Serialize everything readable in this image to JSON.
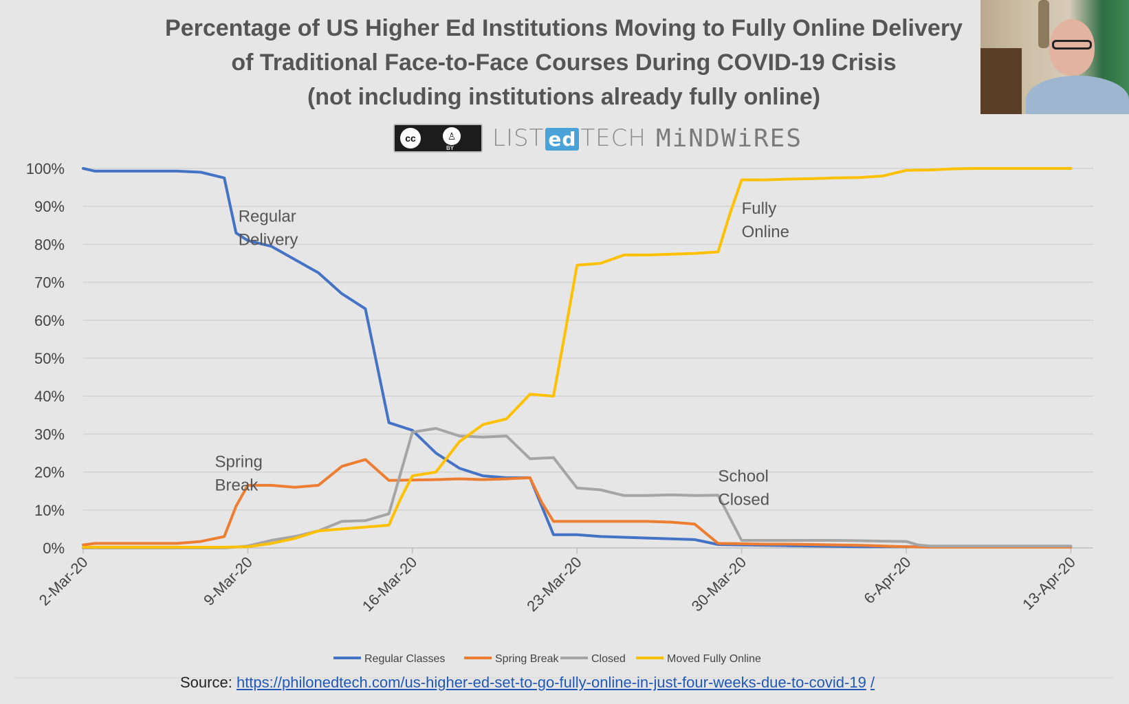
{
  "title_lines": [
    "Percentage of US Higher Ed Institutions Moving to Fully Online Delivery",
    "of Traditional Face-to-Face Courses During COVID-19 Crisis",
    "(not including institutions already fully online)"
  ],
  "logos": {
    "cc_label": "cc",
    "by_label": "BY",
    "listedtech_left": "LIST",
    "listedtech_mid": "ed",
    "listedtech_right": "TECH",
    "mindwires": "MiNDWiRES"
  },
  "source": {
    "label": "Source:",
    "url": "https://philonedtech.com/us-higher-ed-set-to-go-fully-online-in-just-four-weeks-due-to-covid-19",
    "trailing": "/"
  },
  "chart_data": {
    "type": "line",
    "title": "Percentage of US Higher Ed Institutions Moving to Fully Online Delivery of Traditional Face-to-Face Courses During COVID-19 Crisis (not including institutions already fully online)",
    "x_start": "2020-03-02",
    "x_ticks": [
      "2-Mar-20",
      "9-Mar-20",
      "16-Mar-20",
      "23-Mar-20",
      "30-Mar-20",
      "6-Apr-20",
      "13-Apr-20"
    ],
    "y_ticks": [
      "0%",
      "10%",
      "20%",
      "30%",
      "40%",
      "50%",
      "60%",
      "70%",
      "80%",
      "90%",
      "100%"
    ],
    "ylim": [
      0,
      100
    ],
    "grid": true,
    "legend_position": "bottom",
    "series": [
      {
        "name": "Regular Classes",
        "color": "#4472c4",
        "points": [
          [
            0,
            100
          ],
          [
            0.5,
            99.3
          ],
          [
            1,
            99.3
          ],
          [
            2,
            99.3
          ],
          [
            3,
            99.3
          ],
          [
            4,
            99.3
          ],
          [
            5,
            99
          ],
          [
            6,
            97.5
          ],
          [
            6.5,
            83
          ],
          [
            7,
            81
          ],
          [
            8,
            79.5
          ],
          [
            9,
            76
          ],
          [
            10,
            72.5
          ],
          [
            11,
            67
          ],
          [
            12,
            63
          ],
          [
            12.5,
            48
          ],
          [
            13,
            33
          ],
          [
            14,
            31
          ],
          [
            15,
            25
          ],
          [
            16,
            21
          ],
          [
            17,
            19
          ],
          [
            18,
            18.5
          ],
          [
            19,
            18.5
          ],
          [
            19.5,
            11
          ],
          [
            20,
            3.5
          ],
          [
            21,
            3.5
          ],
          [
            22,
            3
          ],
          [
            23,
            2.8
          ],
          [
            24,
            2.6
          ],
          [
            25,
            2.4
          ],
          [
            26,
            2.2
          ],
          [
            27,
            0.9
          ],
          [
            28,
            0.8
          ],
          [
            29,
            0.7
          ],
          [
            30,
            0.6
          ],
          [
            31,
            0.5
          ],
          [
            32,
            0.4
          ],
          [
            33,
            0.3
          ],
          [
            34,
            0.3
          ],
          [
            35,
            0.3
          ],
          [
            36,
            0.3
          ],
          [
            37,
            0.3
          ],
          [
            38,
            0.3
          ],
          [
            39,
            0.3
          ],
          [
            40,
            0.3
          ],
          [
            41,
            0.3
          ],
          [
            42,
            0.3
          ]
        ]
      },
      {
        "name": "Spring Break",
        "color": "#ed7d31",
        "points": [
          [
            0,
            0.8
          ],
          [
            0.5,
            1.2
          ],
          [
            1,
            1.2
          ],
          [
            2,
            1.2
          ],
          [
            3,
            1.2
          ],
          [
            4,
            1.2
          ],
          [
            5,
            1.7
          ],
          [
            6,
            3
          ],
          [
            6.5,
            11
          ],
          [
            7,
            16.5
          ],
          [
            8,
            16.5
          ],
          [
            9,
            16
          ],
          [
            10,
            16.5
          ],
          [
            11,
            21.5
          ],
          [
            12,
            23.3
          ],
          [
            13,
            17.8
          ],
          [
            14,
            17.9
          ],
          [
            15,
            18
          ],
          [
            16,
            18.2
          ],
          [
            17,
            18
          ],
          [
            18,
            18.2
          ],
          [
            19,
            18.5
          ],
          [
            19.5,
            12
          ],
          [
            20,
            7
          ],
          [
            21,
            7
          ],
          [
            22,
            7
          ],
          [
            23,
            7
          ],
          [
            24,
            7
          ],
          [
            25,
            6.8
          ],
          [
            26,
            6.3
          ],
          [
            27,
            1.2
          ],
          [
            28,
            1.1
          ],
          [
            29,
            1
          ],
          [
            30,
            1
          ],
          [
            31,
            0.9
          ],
          [
            32,
            0.8
          ],
          [
            33,
            0.7
          ],
          [
            34,
            0.5
          ],
          [
            35,
            0.3
          ],
          [
            36,
            0.2
          ],
          [
            37,
            0.2
          ],
          [
            38,
            0.2
          ],
          [
            39,
            0.2
          ],
          [
            40,
            0.2
          ],
          [
            41,
            0.2
          ],
          [
            42,
            0.2
          ]
        ]
      },
      {
        "name": "Closed",
        "color": "#a5a5a5",
        "points": [
          [
            0,
            0
          ],
          [
            1,
            0
          ],
          [
            2,
            0
          ],
          [
            3,
            0
          ],
          [
            4,
            0
          ],
          [
            5,
            0
          ],
          [
            6,
            0
          ],
          [
            7,
            0.5
          ],
          [
            8,
            2
          ],
          [
            9,
            3
          ],
          [
            10,
            4.5
          ],
          [
            11,
            7
          ],
          [
            12,
            7.2
          ],
          [
            13,
            9
          ],
          [
            14,
            30.5
          ],
          [
            15,
            31.5
          ],
          [
            16,
            29.5
          ],
          [
            17,
            29.2
          ],
          [
            18,
            29.5
          ],
          [
            19,
            23.5
          ],
          [
            20,
            23.8
          ],
          [
            21,
            15.8
          ],
          [
            22,
            15.3
          ],
          [
            23,
            13.8
          ],
          [
            24,
            13.8
          ],
          [
            25,
            14
          ],
          [
            26,
            13.8
          ],
          [
            27,
            13.9
          ],
          [
            28,
            2
          ],
          [
            29,
            2
          ],
          [
            30,
            2
          ],
          [
            31,
            2
          ],
          [
            32,
            2
          ],
          [
            33,
            1.9
          ],
          [
            34,
            1.8
          ],
          [
            35,
            1.7
          ],
          [
            35.5,
            0.8
          ],
          [
            36,
            0.5
          ],
          [
            37,
            0.5
          ],
          [
            38,
            0.5
          ],
          [
            39,
            0.5
          ],
          [
            40,
            0.5
          ],
          [
            41,
            0.5
          ],
          [
            42,
            0.5
          ]
        ]
      },
      {
        "name": "Moved Fully Online",
        "color": "#ffc000",
        "points": [
          [
            0,
            0.2
          ],
          [
            1,
            0.2
          ],
          [
            2,
            0.2
          ],
          [
            3,
            0.2
          ],
          [
            4,
            0.2
          ],
          [
            5,
            0.2
          ],
          [
            6,
            0.2
          ],
          [
            7,
            0.3
          ],
          [
            8,
            1.2
          ],
          [
            9,
            2.5
          ],
          [
            10,
            4.5
          ],
          [
            11,
            5
          ],
          [
            12,
            5.5
          ],
          [
            13,
            6
          ],
          [
            13.5,
            13
          ],
          [
            14,
            19
          ],
          [
            15,
            20
          ],
          [
            16,
            28
          ],
          [
            17,
            32.5
          ],
          [
            18,
            34
          ],
          [
            19,
            40.5
          ],
          [
            20,
            40
          ],
          [
            20.5,
            57
          ],
          [
            21,
            74.5
          ],
          [
            22,
            75
          ],
          [
            23,
            77.2
          ],
          [
            24,
            77.2
          ],
          [
            25,
            77.4
          ],
          [
            26,
            77.6
          ],
          [
            27,
            78
          ],
          [
            27.5,
            88
          ],
          [
            28,
            97
          ],
          [
            29,
            97
          ],
          [
            30,
            97.2
          ],
          [
            31,
            97.3
          ],
          [
            32,
            97.5
          ],
          [
            33,
            97.6
          ],
          [
            34,
            98
          ],
          [
            35,
            99.5
          ],
          [
            36,
            99.6
          ],
          [
            37,
            99.9
          ],
          [
            38,
            100
          ],
          [
            39,
            100
          ],
          [
            40,
            100
          ],
          [
            41,
            100
          ],
          [
            42,
            100
          ]
        ]
      }
    ],
    "annotations": [
      {
        "lines": [
          "Regular",
          "Delivery"
        ],
        "day": 6.6,
        "y": 86
      },
      {
        "lines": [
          "Fully",
          "Online"
        ],
        "day": 28.0,
        "y": 88
      },
      {
        "lines": [
          "Spring",
          "Break"
        ],
        "day": 5.6,
        "y": 21.3
      },
      {
        "lines": [
          "School",
          "Closed"
        ],
        "day": 27.0,
        "y": 17.5
      }
    ]
  }
}
